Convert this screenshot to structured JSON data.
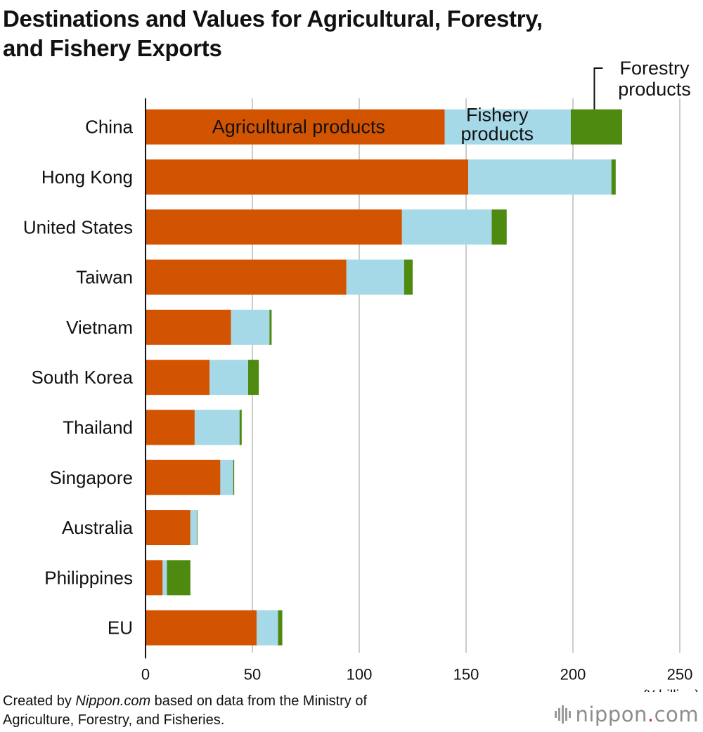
{
  "title_lines": [
    "Destinations and Values for Agricultural, Forestry,",
    "and Fishery Exports"
  ],
  "footer": {
    "line1_prefix": "Created by ",
    "line1_source": "Nippon.com",
    "line1_suffix": " based on data from the Ministry of",
    "line2": "Agriculture, Forestry, and Fisheries."
  },
  "brand": {
    "name": "nippon",
    "dot": ".",
    "tld": "com"
  },
  "colors": {
    "agricultural": "#d35400",
    "fishery": "#a6d9e8",
    "forestry": "#4f8a10",
    "grid": "#cccccc",
    "axis": "#111111"
  },
  "chart_data": {
    "type": "bar",
    "orientation": "horizontal",
    "stacked": true,
    "categories": [
      "China",
      "Hong Kong",
      "United States",
      "Taiwan",
      "Vietnam",
      "South Korea",
      "Thailand",
      "Singapore",
      "Australia",
      "Philippines",
      "EU"
    ],
    "series": [
      {
        "name": "Agricultural products",
        "values": [
          140,
          151,
          120,
          94,
          40,
          30,
          23,
          35,
          21,
          8,
          52
        ]
      },
      {
        "name": "Fishery products",
        "values": [
          59,
          67,
          42,
          27,
          18,
          18,
          21,
          6,
          3,
          2,
          10
        ]
      },
      {
        "name": "Forestry products",
        "values": [
          24,
          2,
          7,
          4,
          1,
          5,
          1,
          0.5,
          0.3,
          11,
          2
        ]
      }
    ],
    "series_label_lines": [
      [
        "Agricultural products"
      ],
      [
        "Fishery",
        "products"
      ],
      [
        "Forestry",
        "products"
      ]
    ],
    "xlim": [
      0,
      250
    ],
    "xticks": [
      0,
      50,
      100,
      150,
      200,
      250
    ],
    "xunit": "(¥ billion)",
    "grid": true
  }
}
